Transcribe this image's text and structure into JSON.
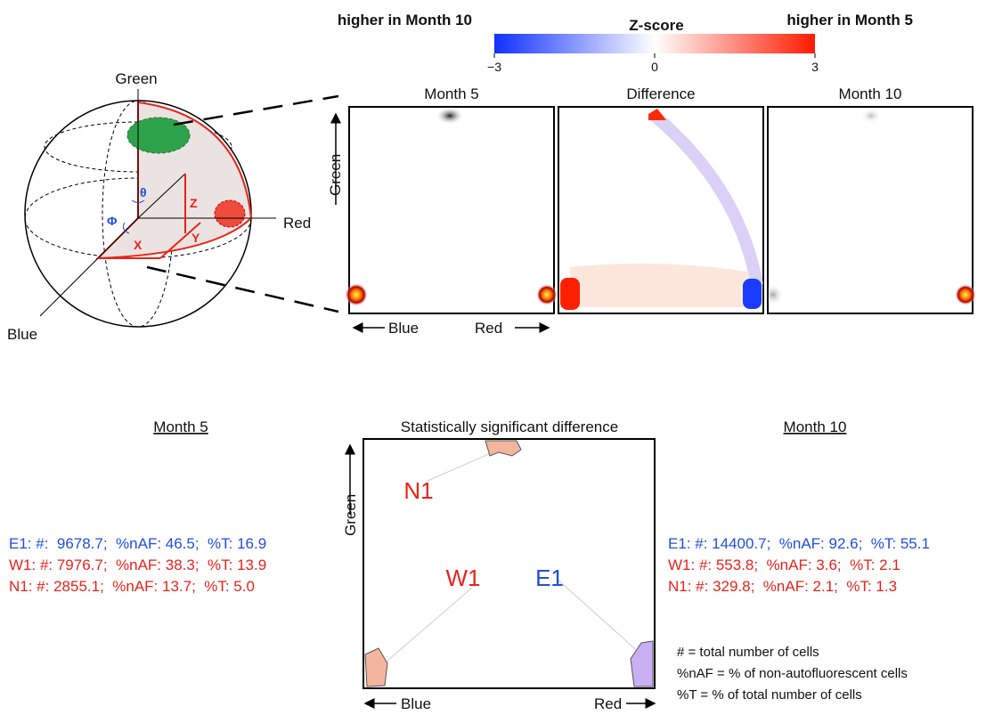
{
  "sphere": {
    "green": "Green",
    "red": "Red",
    "blue": "Blue",
    "theta": "θ",
    "phi": "Φ",
    "x": "X",
    "y": "Y",
    "z": "Z"
  },
  "colorbar": {
    "left_label": "higher in Month 10",
    "title": "Z-score",
    "right_label": "higher in Month 5",
    "lim": [
      -3,
      3
    ],
    "ticks": [
      {
        "value": -3,
        "label": "−3"
      },
      0,
      3
    ]
  },
  "panels": [
    {
      "title": "Month 5"
    },
    {
      "title": "Difference"
    },
    {
      "title": "Month 10"
    }
  ],
  "axis_labels": {
    "green": "Green",
    "blue": "Blue",
    "red": "Red"
  },
  "bottom": {
    "title": "Statistically significant difference",
    "clusters": [
      "N1",
      "W1",
      "E1"
    ],
    "axis_labels": {
      "green": "Green",
      "blue": "Blue",
      "red": "Red"
    },
    "month5": {
      "title": "Month 5",
      "rows": [
        "E1: #:  9678.7;  %nAF: 46.5;  %T: 16.9",
        "W1: #: 7976.7;  %nAF: 38.3;  %T: 13.9",
        "N1: #: 2855.1;  %nAF: 13.7;  %T: 5.0"
      ]
    },
    "month10": {
      "title": "Month 10",
      "rows": [
        "E1: #: 14400.7;  %nAF: 92.6;  %T: 55.1",
        "W1: #: 553.8;  %nAF: 3.6;  %T: 2.1",
        "N1: #: 329.8;  %nAF: 2.1;  %T: 1.3"
      ]
    },
    "legend": [
      "# = total number of cells",
      "%nAF = % of non-autofluorescent cells",
      "%T = % of total number of cells"
    ]
  }
}
